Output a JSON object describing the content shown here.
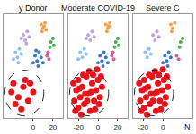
{
  "chart_data": [
    {
      "type": "scatter",
      "title": "y Donor",
      "xlim": [
        -30,
        30
      ],
      "xticks": [
        0,
        20
      ],
      "ylim": [
        -30,
        30
      ],
      "yticks": [],
      "tick_labels": "x",
      "grid": false,
      "series": [
        {
          "color": "#f5a04a",
          "x": [
            8,
            10,
            12,
            9,
            11,
            13
          ],
          "y": [
            24,
            22,
            25,
            20,
            23,
            21
          ]
        },
        {
          "color": "#b9a3e3",
          "x": [
            -10,
            -6,
            -8,
            -4,
            -12,
            -7
          ],
          "y": [
            18,
            20,
            15,
            17,
            16,
            13
          ]
        },
        {
          "color": "#8fbfea",
          "x": [
            -18,
            -14,
            -16,
            -12,
            -20,
            -15
          ],
          "y": [
            8,
            10,
            5,
            7,
            4,
            2
          ]
        },
        {
          "color": "#3b78c9",
          "x": [
            2,
            6,
            4,
            8,
            0,
            5,
            10,
            3
          ],
          "y": [
            6,
            8,
            3,
            5,
            2,
            0,
            2,
            9
          ]
        },
        {
          "color": "#4caf50",
          "x": [
            18,
            20,
            17,
            21
          ],
          "y": [
            14,
            16,
            11,
            12
          ]
        },
        {
          "color": "#e05aa0",
          "x": [
            14,
            16,
            15
          ],
          "y": [
            6,
            4,
            8
          ]
        },
        {
          "color": "#e8141c",
          "x": [
            -20,
            -15,
            -10,
            -5,
            -18,
            -8,
            0,
            -12,
            -22,
            -3
          ],
          "y": [
            -10,
            -18,
            -12,
            -20,
            -22,
            -8,
            -15,
            -25,
            -15,
            -10
          ]
        }
      ]
    },
    {
      "type": "scatter",
      "title": "Moderate COVID-19",
      "xlim": [
        -30,
        30
      ],
      "xticks": [
        -20,
        0,
        20
      ],
      "ylim": [
        -30,
        30
      ],
      "yticks": [],
      "tick_labels": "x",
      "grid": false,
      "series": [
        {
          "color": "#f5a04a",
          "x": [
            8,
            10,
            12,
            9,
            11
          ],
          "y": [
            24,
            22,
            25,
            20,
            23
          ]
        },
        {
          "color": "#b9a3e3",
          "x": [
            -10,
            -6,
            -8,
            -4,
            -12
          ],
          "y": [
            18,
            20,
            15,
            17,
            16
          ]
        },
        {
          "color": "#8fbfea",
          "x": [
            -18,
            -14,
            -16,
            -12,
            -20
          ],
          "y": [
            8,
            10,
            5,
            7,
            4
          ]
        },
        {
          "color": "#3b78c9",
          "x": [
            2,
            6,
            4,
            8,
            0,
            5,
            10
          ],
          "y": [
            6,
            8,
            3,
            5,
            2,
            0,
            2
          ]
        },
        {
          "color": "#4caf50",
          "x": [
            18,
            20,
            17,
            21
          ],
          "y": [
            14,
            16,
            11,
            12
          ]
        },
        {
          "color": "#e05aa0",
          "x": [
            14,
            16,
            15
          ],
          "y": [
            6,
            4,
            8
          ]
        },
        {
          "color": "#e8141c",
          "x": [
            -25,
            -22,
            -20,
            -18,
            -16,
            -14,
            -12,
            -10,
            -8,
            -6,
            -4,
            -2,
            0,
            2,
            4,
            -24,
            -20,
            -15,
            -11,
            -7,
            -3,
            1,
            -17,
            -9,
            -13,
            -5,
            3,
            -19,
            -1,
            -23
          ],
          "y": [
            -10,
            -14,
            -8,
            -18,
            -12,
            -22,
            -6,
            -16,
            -26,
            -10,
            -20,
            -14,
            -8,
            -18,
            -12,
            -20,
            -24,
            -5,
            -20,
            -15,
            -25,
            -22,
            -28,
            -3,
            -16,
            -5,
            -6,
            -13,
            -2,
            -26
          ]
        }
      ]
    },
    {
      "type": "scatter",
      "title": "Severe C",
      "xlim": [
        -30,
        30
      ],
      "xticks": [
        -20,
        0
      ],
      "ylim": [
        -30,
        30
      ],
      "yticks": [],
      "tick_labels": "x",
      "grid": false,
      "series": [
        {
          "color": "#f5a04a",
          "x": [
            8,
            10,
            12,
            9
          ],
          "y": [
            24,
            22,
            25,
            20
          ]
        },
        {
          "color": "#b9a3e3",
          "x": [
            -10,
            -6,
            -8,
            -4
          ],
          "y": [
            18,
            20,
            15,
            17
          ]
        },
        {
          "color": "#8fbfea",
          "x": [
            -18,
            -14,
            -16,
            -12
          ],
          "y": [
            8,
            10,
            5,
            7
          ]
        },
        {
          "color": "#3b78c9",
          "x": [
            2,
            6,
            4,
            8,
            0,
            5
          ],
          "y": [
            6,
            8,
            3,
            5,
            2,
            0
          ]
        },
        {
          "color": "#4caf50",
          "x": [
            18,
            20,
            17
          ],
          "y": [
            14,
            16,
            11
          ]
        },
        {
          "color": "#e05aa0",
          "x": [
            14,
            16
          ],
          "y": [
            6,
            4
          ]
        },
        {
          "color": "#e8141c",
          "x": [
            -24,
            -21,
            -19,
            -17,
            -15,
            -13,
            -11,
            -9,
            -7,
            -5,
            -3,
            -1,
            1,
            3,
            5,
            -23,
            -19,
            -14,
            -10,
            -6,
            -2,
            2,
            -16,
            -8,
            -12,
            -4,
            4,
            -18,
            0,
            -22
          ],
          "y": [
            -10,
            -14,
            -8,
            -18,
            -12,
            -22,
            -6,
            -16,
            -26,
            -10,
            -20,
            -14,
            -8,
            -18,
            -12,
            -20,
            -24,
            -5,
            -20,
            -15,
            -25,
            -22,
            -28,
            -3,
            -16,
            -5,
            -6,
            -13,
            -2,
            -26
          ]
        }
      ]
    }
  ],
  "annotation": "N"
}
